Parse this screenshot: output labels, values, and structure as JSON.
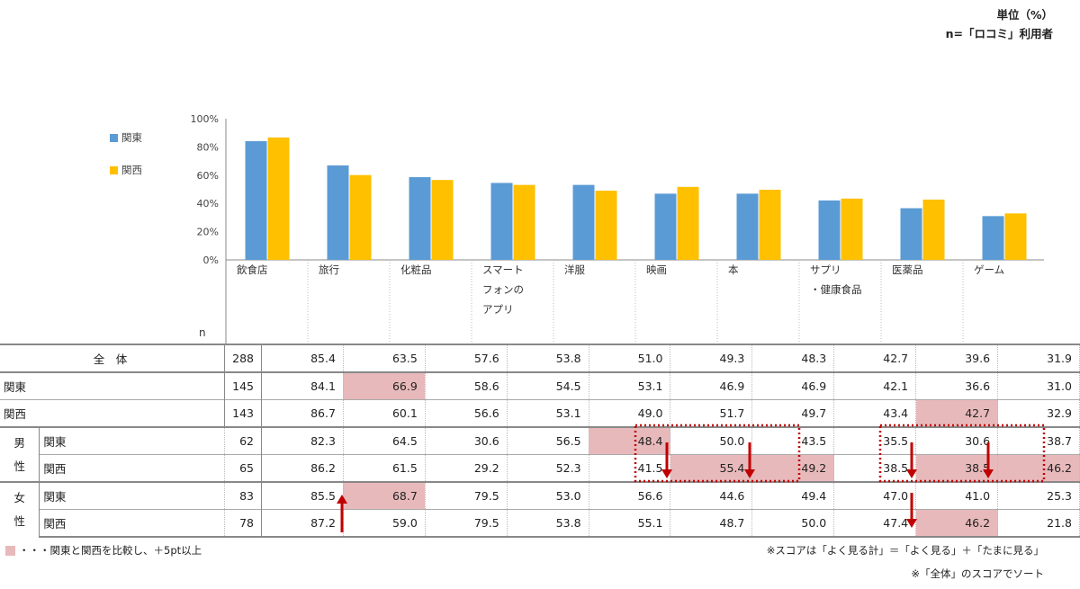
{
  "notes": {
    "unit": "単位（%）",
    "base": "n=「ロコミ」利用者",
    "legend_hl": "・・・関東と関西を比較し、＋5pt以上",
    "score": "※スコアは「よく見る計」＝「よく見る」＋「たまに見る」",
    "sort": "※「全体」のスコアでソート"
  },
  "colors": {
    "kanto": "#5b9bd5",
    "kansai": "#ffc000",
    "highlight": "#e8b9bb",
    "arrow": "#c00000"
  },
  "chart_data": {
    "type": "bar",
    "title": "",
    "categories": [
      "飲食店",
      "旅行",
      "化粧品",
      "スマートフォンのアプリ",
      "洋服",
      "映画",
      "本",
      "サプリ・健康食品",
      "医薬品",
      "ゲーム"
    ],
    "category_lines": [
      [
        "飲食店"
      ],
      [
        "旅行"
      ],
      [
        "化粧品"
      ],
      [
        "スマート",
        "フォンの",
        "アプリ"
      ],
      [
        "洋服"
      ],
      [
        "映画"
      ],
      [
        "本"
      ],
      [
        "サプリ",
        "・健康食品"
      ],
      [
        "医薬品"
      ],
      [
        "ゲーム"
      ]
    ],
    "series": [
      {
        "name": "関東",
        "values": [
          84.1,
          66.9,
          58.6,
          54.5,
          53.1,
          46.9,
          46.9,
          42.1,
          36.6,
          31.0
        ]
      },
      {
        "name": "関西",
        "values": [
          86.7,
          60.1,
          56.6,
          53.1,
          49.0,
          51.7,
          49.7,
          43.4,
          42.7,
          32.9
        ]
      }
    ],
    "yticks": [
      "100%",
      "80%",
      "60%",
      "40%",
      "20%",
      "0%"
    ],
    "ylim": [
      0,
      100
    ],
    "legend": "left",
    "n_label": "n"
  },
  "table": {
    "rows": [
      {
        "group": "全　体",
        "sub": "",
        "n": "288",
        "values": [
          "85.4",
          "63.5",
          "57.6",
          "53.8",
          "51.0",
          "49.3",
          "48.3",
          "42.7",
          "39.6",
          "31.9"
        ],
        "hl": []
      },
      {
        "group": "関東",
        "sub": "",
        "n": "145",
        "values": [
          "84.1",
          "66.9",
          "58.6",
          "54.5",
          "53.1",
          "46.9",
          "46.9",
          "42.1",
          "36.6",
          "31.0"
        ],
        "hl": [
          1
        ]
      },
      {
        "group": "関西",
        "sub": "",
        "n": "143",
        "values": [
          "86.7",
          "60.1",
          "56.6",
          "53.1",
          "49.0",
          "51.7",
          "49.7",
          "43.4",
          "42.7",
          "32.9"
        ],
        "hl": [
          8
        ]
      },
      {
        "group": "男性",
        "sub": "関東",
        "n": "62",
        "values": [
          "82.3",
          "64.5",
          "30.6",
          "56.5",
          "48.4",
          "50.0",
          "43.5",
          "35.5",
          "30.6",
          "38.7"
        ],
        "hl": [
          4
        ]
      },
      {
        "group": "男性",
        "sub": "関西",
        "n": "65",
        "values": [
          "86.2",
          "61.5",
          "29.2",
          "52.3",
          "41.5",
          "55.4",
          "49.2",
          "38.5",
          "38.5",
          "46.2"
        ],
        "hl": [
          5,
          6,
          8,
          9
        ]
      },
      {
        "group": "女性",
        "sub": "関東",
        "n": "83",
        "values": [
          "85.5",
          "68.7",
          "79.5",
          "53.0",
          "56.6",
          "44.6",
          "49.4",
          "47.0",
          "41.0",
          "25.3"
        ],
        "hl": [
          1
        ]
      },
      {
        "group": "女性",
        "sub": "関西",
        "n": "78",
        "values": [
          "87.2",
          "59.0",
          "79.5",
          "53.8",
          "55.1",
          "48.7",
          "50.0",
          "47.4",
          "46.2",
          "21.8"
        ],
        "hl": [
          8
        ]
      }
    ],
    "gender_labels": {
      "male": [
        "男",
        "性"
      ],
      "female": [
        "女",
        "性"
      ]
    }
  }
}
